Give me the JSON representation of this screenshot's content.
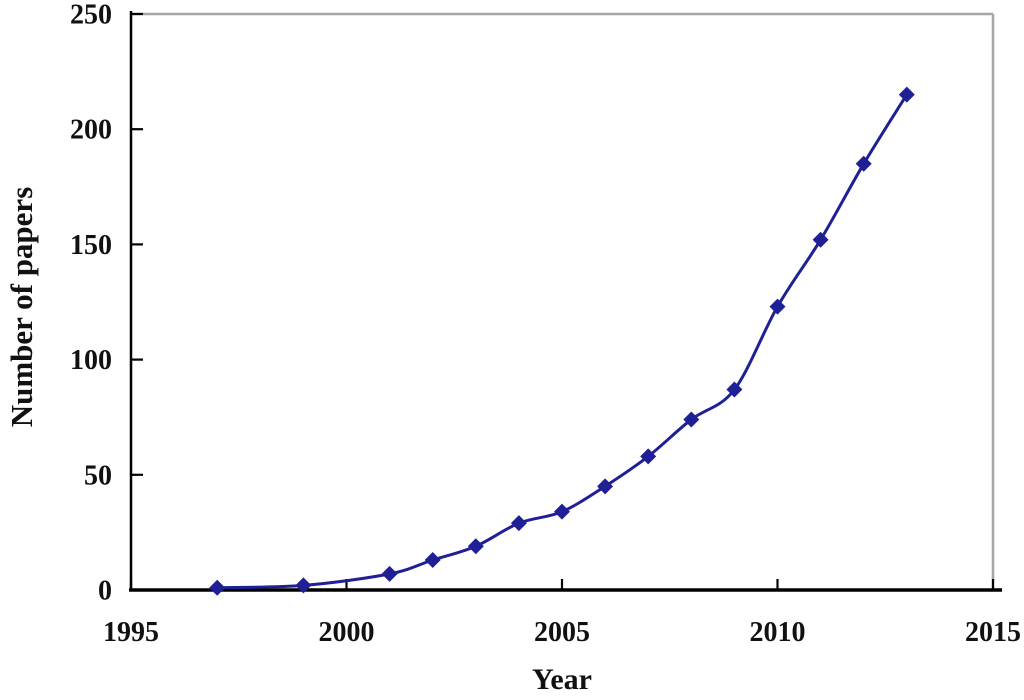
{
  "chart_data": {
    "type": "line",
    "title": "",
    "xlabel": "Year",
    "ylabel": "Number of papers",
    "x": [
      1997,
      1999,
      2001,
      2002,
      2003,
      2004,
      2005,
      2006,
      2007,
      2008,
      2009,
      2010,
      2011,
      2012,
      2013
    ],
    "series": [
      {
        "name": "Number of papers",
        "values": [
          1,
          2,
          7,
          13,
          19,
          29,
          34,
          45,
          58,
          74,
          87,
          123,
          152,
          185,
          215
        ]
      }
    ],
    "xlim": [
      1995,
      2015
    ],
    "ylim": [
      0,
      250
    ],
    "x_ticks": [
      1995,
      2000,
      2005,
      2010,
      2015
    ],
    "y_ticks": [
      0,
      50,
      100,
      150,
      200,
      250
    ],
    "grid": false,
    "legend": "none",
    "marker": "diamond",
    "smooth_line": true,
    "colors": {
      "series": "#1f1f96",
      "axis": "#000000",
      "plot_border": "#a6a6a6",
      "text": "#111111",
      "background": "#ffffff"
    }
  }
}
